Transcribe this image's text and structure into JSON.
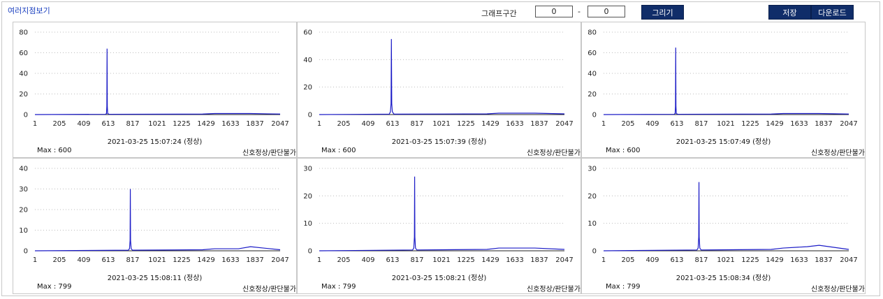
{
  "title": "여러지점보기",
  "controls": {
    "range_label": "그래프구간",
    "range_start": "0",
    "range_sep": "-",
    "range_end": "0",
    "draw_label": "그리기",
    "save_label": "저장",
    "download_label": "다운로드"
  },
  "colors": {
    "line": "#1c1cc7",
    "button_bg": "#102d69",
    "title": "#1a3fbf"
  },
  "panels": [
    {
      "timestamp": "2021-03-25 15:07:24 (정상)",
      "max_label": "Max : 600",
      "status": "신호정상/판단불가"
    },
    {
      "timestamp": "2021-03-25 15:07:39 (정상)",
      "max_label": "Max : 600",
      "status": "신호정상/판단불가"
    },
    {
      "timestamp": "2021-03-25 15:07:49 (정상)",
      "max_label": "Max : 600",
      "status": "신호정상/판단불가"
    },
    {
      "timestamp": "2021-03-25 15:08:11 (정상)",
      "max_label": "Max : 799",
      "status": "신호정상/판단불가"
    },
    {
      "timestamp": "2021-03-25 15:08:21 (정상)",
      "max_label": "Max : 799",
      "status": "신호정상/판단불가"
    },
    {
      "timestamp": "2021-03-25 15:08:34 (정상)",
      "max_label": "Max : 799",
      "status": "신호정상/판단불가"
    }
  ],
  "chart_data": [
    {
      "type": "line",
      "xticks": [
        1,
        205,
        409,
        613,
        817,
        1021,
        1225,
        1429,
        1633,
        1837,
        2047
      ],
      "xlim": [
        1,
        2047
      ],
      "ylim": [
        0,
        80
      ],
      "yticks": [
        0,
        20,
        40,
        60,
        80
      ],
      "grid": true,
      "series": [
        {
          "values": [
            [
              1,
              0
            ],
            [
              590,
              0.3
            ],
            [
              598,
              1
            ],
            [
              601,
              8
            ],
            [
              603,
              64
            ],
            [
              605,
              8
            ],
            [
              608,
              1
            ],
            [
              620,
              0.3
            ],
            [
              1400,
              0.5
            ],
            [
              1500,
              1
            ],
            [
              1700,
              1
            ],
            [
              1800,
              1
            ],
            [
              2047,
              0.5
            ]
          ]
        }
      ]
    },
    {
      "type": "line",
      "xticks": [
        1,
        205,
        409,
        613,
        817,
        1021,
        1225,
        1429,
        1633,
        1837,
        2047
      ],
      "xlim": [
        1,
        2047
      ],
      "ylim": [
        0,
        60
      ],
      "yticks": [
        0,
        20,
        40,
        60
      ],
      "grid": true,
      "series": [
        {
          "values": [
            [
              1,
              0
            ],
            [
              585,
              0.3
            ],
            [
              595,
              2
            ],
            [
              600,
              8
            ],
            [
              603,
              55
            ],
            [
              606,
              8
            ],
            [
              611,
              2
            ],
            [
              625,
              0.3
            ],
            [
              1400,
              0.5
            ],
            [
              1500,
              1
            ],
            [
              1700,
              1
            ],
            [
              1800,
              1
            ],
            [
              2047,
              0.5
            ]
          ]
        }
      ]
    },
    {
      "type": "line",
      "xticks": [
        1,
        205,
        409,
        613,
        817,
        1021,
        1225,
        1429,
        1633,
        1837,
        2047
      ],
      "xlim": [
        1,
        2047
      ],
      "ylim": [
        0,
        80
      ],
      "yticks": [
        0,
        20,
        40,
        60,
        80
      ],
      "grid": true,
      "series": [
        {
          "values": [
            [
              1,
              0
            ],
            [
              590,
              0.3
            ],
            [
              598,
              1
            ],
            [
              601,
              8
            ],
            [
              603,
              65
            ],
            [
              605,
              8
            ],
            [
              608,
              1
            ],
            [
              620,
              0.3
            ],
            [
              1400,
              0.5
            ],
            [
              1500,
              1
            ],
            [
              1700,
              1
            ],
            [
              1800,
              1
            ],
            [
              2047,
              0.5
            ]
          ]
        }
      ]
    },
    {
      "type": "line",
      "xticks": [
        1,
        205,
        409,
        613,
        817,
        1021,
        1225,
        1429,
        1633,
        1837,
        2047
      ],
      "xlim": [
        1,
        2047
      ],
      "ylim": [
        0,
        40
      ],
      "yticks": [
        0,
        10,
        20,
        30,
        40
      ],
      "grid": true,
      "series": [
        {
          "values": [
            [
              1,
              0
            ],
            [
              780,
              0.3
            ],
            [
              790,
              1
            ],
            [
              795,
              5
            ],
            [
              797,
              30
            ],
            [
              799,
              5
            ],
            [
              804,
              1
            ],
            [
              815,
              0.3
            ],
            [
              1400,
              0.5
            ],
            [
              1500,
              1
            ],
            [
              1700,
              1
            ],
            [
              1800,
              2
            ],
            [
              2047,
              0.5
            ]
          ]
        }
      ]
    },
    {
      "type": "line",
      "xticks": [
        1,
        205,
        409,
        613,
        817,
        1021,
        1225,
        1429,
        1633,
        1837,
        2047
      ],
      "xlim": [
        1,
        2047
      ],
      "ylim": [
        0,
        30
      ],
      "yticks": [
        0,
        10,
        20,
        30
      ],
      "grid": true,
      "series": [
        {
          "values": [
            [
              1,
              0
            ],
            [
              780,
              0.3
            ],
            [
              790,
              1
            ],
            [
              795,
              5
            ],
            [
              797,
              27
            ],
            [
              799,
              5
            ],
            [
              804,
              1
            ],
            [
              815,
              0.3
            ],
            [
              1400,
              0.5
            ],
            [
              1500,
              1
            ],
            [
              1700,
              1
            ],
            [
              1800,
              1
            ],
            [
              2047,
              0.5
            ]
          ]
        }
      ]
    },
    {
      "type": "line",
      "xticks": [
        1,
        205,
        409,
        613,
        817,
        1021,
        1225,
        1429,
        1633,
        1837,
        2047
      ],
      "xlim": [
        1,
        2047
      ],
      "ylim": [
        0,
        30
      ],
      "yticks": [
        0,
        10,
        20,
        30
      ],
      "grid": true,
      "series": [
        {
          "values": [
            [
              1,
              0
            ],
            [
              780,
              0.3
            ],
            [
              790,
              1
            ],
            [
              795,
              5
            ],
            [
              797,
              25
            ],
            [
              799,
              5
            ],
            [
              804,
              1
            ],
            [
              815,
              0.3
            ],
            [
              1400,
              0.5
            ],
            [
              1500,
              1
            ],
            [
              1700,
              1.5
            ],
            [
              1800,
              2
            ],
            [
              2047,
              0.5
            ]
          ]
        }
      ]
    }
  ]
}
